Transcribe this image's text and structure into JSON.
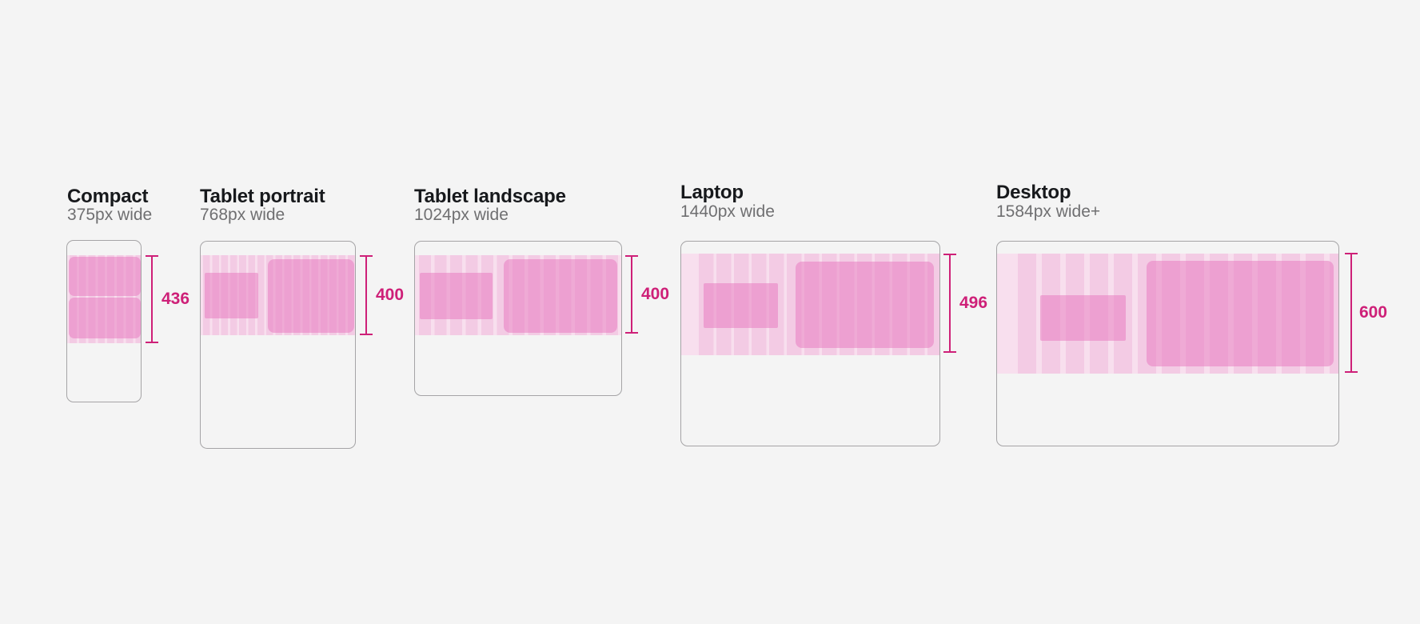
{
  "page": {
    "background_color": "#f4f4f4"
  },
  "colors": {
    "accent": "#ce2078",
    "grid_background": "#f8dfee",
    "grid_column": "#f3cbe4",
    "block_overlay": "rgba(232,126,193,0.55)",
    "frame_border": "#a5a4a6",
    "title_text": "#17191c",
    "subtitle_text": "#6f6f71"
  },
  "devices": [
    {
      "name": "Compact",
      "width_label": "375px wide",
      "measurement_value": "436"
    },
    {
      "name": "Tablet portrait",
      "width_label": "768px wide",
      "measurement_value": "400"
    },
    {
      "name": "Tablet landscape",
      "width_label": "1024px wide",
      "measurement_value": "400"
    },
    {
      "name": "Laptop",
      "width_label": "1440px wide",
      "measurement_value": "496"
    },
    {
      "name": "Desktop",
      "width_label": "1584px wide+",
      "measurement_value": "600"
    }
  ]
}
